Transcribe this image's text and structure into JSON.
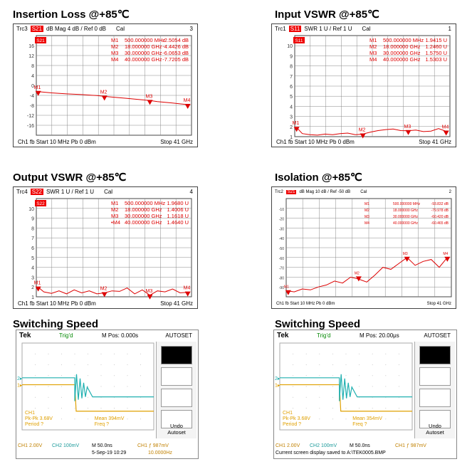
{
  "titles": {
    "insertion": "Insertion Loss @+85℃",
    "input_vswr": "Input VSWR @+85℃",
    "output_vswr": "Output VSWR @+85℃",
    "isolation": "Isolation @+85℃",
    "switch1": "Switching Speed",
    "switch2": "Switching Speed"
  },
  "chart_data": [
    {
      "type": "line",
      "id": "insertion",
      "header": {
        "trc": "Trc3",
        "param": "S21",
        "fmt": "dB Mag  4 dB /  Ref 0 dB",
        "cal": "Cal",
        "num": "3"
      },
      "footer": {
        "left": "Ch1  fb  Start  10 MHz     Pb   0 dBm",
        "right": "Stop  41 GHz"
      },
      "ylim": [
        -20,
        20
      ],
      "yticks": [
        "16",
        "12",
        "8",
        "4",
        "0",
        "-4",
        "-8",
        "-12",
        "-16"
      ],
      "ref_marker": "S21",
      "markers": [
        {
          "name": "M1",
          "freq": "500.000000  MHz",
          "val": "-2.5054  dB"
        },
        {
          "name": "M2",
          "freq": "18.000000  GHz",
          "val": "-4.4426  dB"
        },
        {
          "name": "M3",
          "freq": "30.000000  GHz",
          "val": "-6.0653  dB"
        },
        {
          "name": "M4",
          "freq": "40.000000  GHz",
          "val": "-7.7205  dB"
        }
      ],
      "x": [
        0.5,
        4,
        8,
        12,
        16,
        18,
        20,
        24,
        28,
        30,
        32,
        36,
        40
      ],
      "y": [
        -2.5,
        -3.0,
        -3.4,
        -3.7,
        -4.1,
        -4.4,
        -4.7,
        -5.2,
        -5.8,
        -6.1,
        -6.5,
        -7.1,
        -7.7
      ],
      "marker_pos": [
        [
          0.5,
          -2.5
        ],
        [
          18,
          -4.4
        ],
        [
          30,
          -6.1
        ],
        [
          40,
          -7.7
        ]
      ]
    },
    {
      "type": "line",
      "id": "input_vswr",
      "header": {
        "trc": "Trc1",
        "param": "S11",
        "fmt": "SWR  1 U /  Ref 1 U",
        "cal": "Cal",
        "num": "1"
      },
      "footer": {
        "left": "Ch1  fb  Start  10 MHz     Pb   0 dBm",
        "right": "Stop  41 GHz"
      },
      "ylim": [
        1,
        11
      ],
      "yticks": [
        "10",
        "9",
        "8",
        "7",
        "6",
        "5",
        "4",
        "3",
        "2",
        "1"
      ],
      "ref_marker": "S11",
      "markers": [
        {
          "name": "M1",
          "freq": "500.000000  MHz",
          "val": "1.9415  U"
        },
        {
          "name": "M2",
          "freq": "18.000000  GHz",
          "val": "1.2460  U"
        },
        {
          "name": "M3",
          "freq": "30.000000  GHz",
          "val": "1.5750  U"
        },
        {
          "name": "M4",
          "freq": "40.000000  GHz",
          "val": "1.5303  U"
        }
      ],
      "x": [
        0.5,
        2,
        4,
        6,
        8,
        10,
        12,
        14,
        16,
        18,
        20,
        22,
        24,
        26,
        28,
        30,
        32,
        34,
        36,
        38,
        40
      ],
      "y": [
        1.9,
        1.3,
        1.2,
        1.15,
        1.25,
        1.2,
        1.3,
        1.35,
        1.2,
        1.25,
        1.45,
        1.6,
        1.7,
        1.75,
        1.6,
        1.58,
        1.65,
        1.5,
        1.55,
        1.8,
        1.53
      ],
      "marker_pos": [
        [
          0.5,
          1.9
        ],
        [
          18,
          1.25
        ],
        [
          30,
          1.58
        ],
        [
          40,
          1.53
        ]
      ]
    },
    {
      "type": "line",
      "id": "output_vswr",
      "header": {
        "trc": "Trc4",
        "param": "S22",
        "fmt": "SWR  1 U /  Ref 1 U",
        "cal": "Cal",
        "num": "4"
      },
      "footer": {
        "left": "Ch1  fb  Start  10 MHz     Pb   0 dBm",
        "right": "Stop  41 GHz"
      },
      "ylim": [
        1,
        11
      ],
      "yticks": [
        "10",
        "9",
        "8",
        "7",
        "6",
        "5",
        "4",
        "3",
        "2",
        "1"
      ],
      "ref_marker": "S22",
      "markers": [
        {
          "name": "M1",
          "freq": "500.000000  MHz",
          "val": "1.9680  U"
        },
        {
          "name": "M2",
          "freq": "18.000000  GHz",
          "val": "1.4006  U"
        },
        {
          "name": "M3",
          "freq": "30.000000  GHz",
          "val": "1.1618  U"
        },
        {
          "name": "•M4",
          "freq": "40.000000  GHz",
          "val": "1.4640  U"
        }
      ],
      "x": [
        0.5,
        2,
        4,
        6,
        8,
        10,
        12,
        14,
        16,
        18,
        20,
        22,
        24,
        26,
        28,
        30,
        32,
        34,
        36,
        38,
        40
      ],
      "y": [
        1.97,
        1.5,
        1.35,
        1.6,
        1.3,
        1.7,
        1.4,
        1.6,
        1.3,
        1.4,
        1.6,
        1.55,
        1.9,
        1.3,
        1.7,
        1.16,
        1.6,
        1.5,
        1.8,
        1.4,
        1.46
      ],
      "marker_pos": [
        [
          0.5,
          1.97
        ],
        [
          18,
          1.4
        ],
        [
          30,
          1.16
        ],
        [
          40,
          1.46
        ]
      ]
    },
    {
      "type": "line",
      "id": "isolation",
      "header": {
        "trc": "Trc2",
        "param": "S21",
        "fmt": "dB Mag  10 dB /  Ref -50 dB",
        "cal": "Cal",
        "num": "2"
      },
      "footer": {
        "left": "Ch1  fb  Start  10 MHz     Pb   0 dBm",
        "right": "Stop  41 GHz"
      },
      "ylim": [
        -100,
        0
      ],
      "yticks": [
        "-10",
        "-20",
        "-30",
        "-40",
        "-50",
        "-60",
        "-70",
        "-80",
        "-90"
      ],
      "ref_marker": "",
      "markers": [
        {
          "name": "M1",
          "freq": "500.000000  MHz",
          "val": "-93.832  dB"
        },
        {
          "name": "M2",
          "freq": "18.000000  GHz",
          "val": "-79.978  dB"
        },
        {
          "name": "M3",
          "freq": "30.000000  GHz",
          "val": "-60.420  dB"
        },
        {
          "name": "M4",
          "freq": "40.000000  GHz",
          "val": "-60.465  dB"
        }
      ],
      "x": [
        0.5,
        2,
        4,
        6,
        8,
        10,
        12,
        14,
        16,
        18,
        20,
        22,
        24,
        26,
        28,
        30,
        32,
        34,
        36,
        38,
        40
      ],
      "y": [
        -94,
        -95,
        -92,
        -93,
        -90,
        -88,
        -84,
        -86,
        -80,
        -82,
        -85,
        -78,
        -70,
        -72,
        -66,
        -60,
        -68,
        -64,
        -62,
        -70,
        -60
      ],
      "marker_pos": [
        [
          0.5,
          -94
        ],
        [
          18,
          -80
        ],
        [
          30,
          -60
        ],
        [
          40,
          -60
        ]
      ]
    }
  ],
  "scopes": [
    {
      "id": "s1",
      "brand": "Tek",
      "trig": "Trig'd",
      "mpos": "M Pos: 0.000s",
      "autoset": "AUTOSET",
      "ch1_label": "CH1",
      "pkpk": "Pk-Pk 3.68V",
      "period": "Period ?",
      "mean": "Mean 394mV",
      "freq": "Freq ?",
      "bottom_ch1": "CH1  2.00V",
      "bottom_ch2": "CH2  100mV",
      "bottom_m": "M 50.0ns",
      "bottom_trig": "CH1 ƒ  987mV",
      "date": "5-Sep-19 10:29",
      "freqval": "10.0000Hz",
      "undo": "Undo",
      "autoset2": "Autoset",
      "edge": 0.4
    },
    {
      "id": "s2",
      "brand": "Tek",
      "trig": "Trig'd",
      "mpos": "M Pos: 20.00μs",
      "autoset": "AUTOSET",
      "ch1_label": "CH1",
      "pkpk": "Pk-Pk 3.68V",
      "period": "Period ?",
      "mean": "Mean 354mV",
      "freq": "Freq ?",
      "bottom_ch1": "CH1  2.00V",
      "bottom_ch2": "CH2  100mV",
      "bottom_m": "M 50.0ns",
      "bottom_trig": "CH1 ƒ  987mV",
      "saved": "Current screen display saved to A:\\TEK0005.BMP",
      "undo": "Undo",
      "autoset2": "Autoset",
      "edge": 0.45
    }
  ]
}
